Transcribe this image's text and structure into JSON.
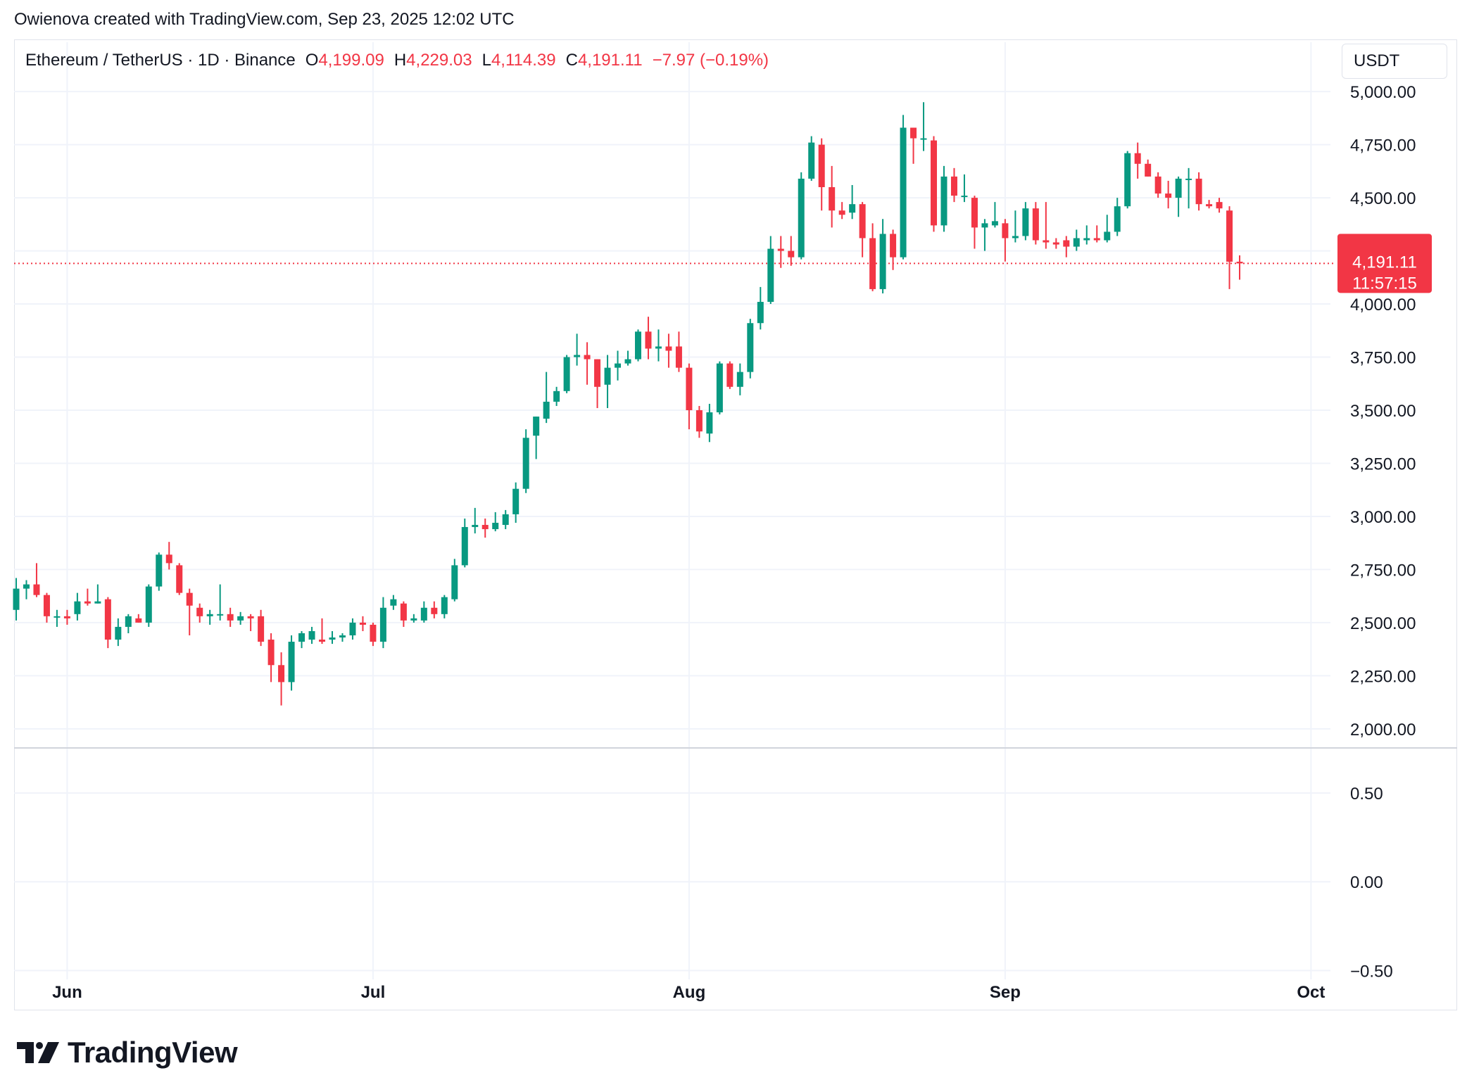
{
  "attribution": "Owienova created with TradingView.com, Sep 23, 2025 12:02 UTC",
  "legend": {
    "symbol": "Ethereum / TetherUS · 1D · Binance",
    "o_label": "O",
    "o_value": "4,199.09",
    "h_label": "H",
    "h_value": "4,229.03",
    "l_label": "L",
    "l_value": "4,114.39",
    "c_label": "C",
    "c_value": "4,191.11",
    "change": "−7.97 (−0.19%)"
  },
  "currency_button": "USDT",
  "last_price": {
    "price": "4,191.11",
    "countdown": "11:57:15"
  },
  "logo_text": "TradingView",
  "colors": {
    "up": "#089981",
    "down": "#f23645",
    "grid": "#f0f3fa",
    "text": "#131722"
  },
  "chart_data": {
    "type": "candlestick",
    "title": "Ethereum / TetherUS · 1D · Binance",
    "price_axis": {
      "ylim": [
        1920,
        5080
      ],
      "ticks": [
        2000,
        2250,
        2500,
        2750,
        3000,
        3250,
        3500,
        3750,
        4000,
        4250,
        4500,
        4750,
        5000
      ],
      "tick_labels": [
        "2,000.00",
        "2,250.00",
        "2,500.00",
        "2,750.00",
        "3,000.00",
        "3,250.00",
        "3,500.00",
        "3,750.00",
        "4,000.00",
        "4,250.00",
        "4,500.00",
        "4,750.00",
        "5,000.00"
      ],
      "current_price": 4191.11
    },
    "indicator_axis": {
      "ylim": [
        -0.55,
        0.75
      ],
      "ticks": [
        0.5,
        0.0,
        -0.5
      ],
      "tick_labels": [
        "0.50",
        "0.00",
        "−0.50"
      ]
    },
    "time_axis": {
      "labels": [
        "Jun",
        "Jul",
        "Aug",
        "Sep",
        "Oct"
      ],
      "label_dates": [
        "2025-06-01",
        "2025-07-01",
        "2025-08-01",
        "2025-09-01",
        "2025-10-01"
      ]
    },
    "candles": [
      {
        "date": "2025-05-27",
        "o": 2560,
        "h": 2710,
        "l": 2510,
        "c": 2660
      },
      {
        "date": "2025-05-28",
        "o": 2660,
        "h": 2700,
        "l": 2610,
        "c": 2680
      },
      {
        "date": "2025-05-29",
        "o": 2680,
        "h": 2780,
        "l": 2620,
        "c": 2630
      },
      {
        "date": "2025-05-30",
        "o": 2630,
        "h": 2640,
        "l": 2500,
        "c": 2530
      },
      {
        "date": "2025-05-31",
        "o": 2530,
        "h": 2560,
        "l": 2480,
        "c": 2530
      },
      {
        "date": "2025-06-01",
        "o": 2530,
        "h": 2560,
        "l": 2490,
        "c": 2520
      },
      {
        "date": "2025-06-02",
        "o": 2540,
        "h": 2640,
        "l": 2510,
        "c": 2600
      },
      {
        "date": "2025-06-03",
        "o": 2600,
        "h": 2660,
        "l": 2580,
        "c": 2590
      },
      {
        "date": "2025-06-04",
        "o": 2590,
        "h": 2680,
        "l": 2590,
        "c": 2600
      },
      {
        "date": "2025-06-05",
        "o": 2610,
        "h": 2620,
        "l": 2380,
        "c": 2420
      },
      {
        "date": "2025-06-06",
        "o": 2420,
        "h": 2520,
        "l": 2390,
        "c": 2480
      },
      {
        "date": "2025-06-07",
        "o": 2480,
        "h": 2540,
        "l": 2450,
        "c": 2530
      },
      {
        "date": "2025-06-08",
        "o": 2520,
        "h": 2540,
        "l": 2500,
        "c": 2500
      },
      {
        "date": "2025-06-09",
        "o": 2500,
        "h": 2680,
        "l": 2480,
        "c": 2670
      },
      {
        "date": "2025-06-10",
        "o": 2670,
        "h": 2830,
        "l": 2650,
        "c": 2820
      },
      {
        "date": "2025-06-11",
        "o": 2820,
        "h": 2880,
        "l": 2750,
        "c": 2780
      },
      {
        "date": "2025-06-12",
        "o": 2770,
        "h": 2780,
        "l": 2630,
        "c": 2640
      },
      {
        "date": "2025-06-13",
        "o": 2640,
        "h": 2660,
        "l": 2440,
        "c": 2580
      },
      {
        "date": "2025-06-14",
        "o": 2570,
        "h": 2590,
        "l": 2500,
        "c": 2530
      },
      {
        "date": "2025-06-15",
        "o": 2530,
        "h": 2560,
        "l": 2490,
        "c": 2540
      },
      {
        "date": "2025-06-16",
        "o": 2540,
        "h": 2680,
        "l": 2510,
        "c": 2540
      },
      {
        "date": "2025-06-17",
        "o": 2540,
        "h": 2570,
        "l": 2480,
        "c": 2510
      },
      {
        "date": "2025-06-18",
        "o": 2510,
        "h": 2550,
        "l": 2490,
        "c": 2530
      },
      {
        "date": "2025-06-19",
        "o": 2530,
        "h": 2540,
        "l": 2460,
        "c": 2520
      },
      {
        "date": "2025-06-20",
        "o": 2530,
        "h": 2560,
        "l": 2390,
        "c": 2410
      },
      {
        "date": "2025-06-21",
        "o": 2420,
        "h": 2450,
        "l": 2220,
        "c": 2300
      },
      {
        "date": "2025-06-22",
        "o": 2300,
        "h": 2360,
        "l": 2110,
        "c": 2220
      },
      {
        "date": "2025-06-23",
        "o": 2220,
        "h": 2440,
        "l": 2180,
        "c": 2410
      },
      {
        "date": "2025-06-24",
        "o": 2410,
        "h": 2460,
        "l": 2380,
        "c": 2450
      },
      {
        "date": "2025-06-25",
        "o": 2420,
        "h": 2480,
        "l": 2400,
        "c": 2460
      },
      {
        "date": "2025-06-26",
        "o": 2420,
        "h": 2520,
        "l": 2400,
        "c": 2410
      },
      {
        "date": "2025-06-27",
        "o": 2420,
        "h": 2460,
        "l": 2400,
        "c": 2430
      },
      {
        "date": "2025-06-28",
        "o": 2430,
        "h": 2450,
        "l": 2410,
        "c": 2440
      },
      {
        "date": "2025-06-29",
        "o": 2440,
        "h": 2520,
        "l": 2420,
        "c": 2500
      },
      {
        "date": "2025-06-30",
        "o": 2500,
        "h": 2530,
        "l": 2460,
        "c": 2490
      },
      {
        "date": "2025-07-01",
        "o": 2490,
        "h": 2500,
        "l": 2390,
        "c": 2410
      },
      {
        "date": "2025-07-02",
        "o": 2410,
        "h": 2620,
        "l": 2380,
        "c": 2570
      },
      {
        "date": "2025-07-03",
        "o": 2580,
        "h": 2630,
        "l": 2560,
        "c": 2610
      },
      {
        "date": "2025-07-04",
        "o": 2590,
        "h": 2600,
        "l": 2480,
        "c": 2510
      },
      {
        "date": "2025-07-05",
        "o": 2510,
        "h": 2540,
        "l": 2500,
        "c": 2520
      },
      {
        "date": "2025-07-06",
        "o": 2510,
        "h": 2600,
        "l": 2500,
        "c": 2570
      },
      {
        "date": "2025-07-07",
        "o": 2570,
        "h": 2600,
        "l": 2520,
        "c": 2540
      },
      {
        "date": "2025-07-08",
        "o": 2540,
        "h": 2630,
        "l": 2520,
        "c": 2620
      },
      {
        "date": "2025-07-09",
        "o": 2610,
        "h": 2800,
        "l": 2600,
        "c": 2770
      },
      {
        "date": "2025-07-10",
        "o": 2770,
        "h": 2990,
        "l": 2760,
        "c": 2950
      },
      {
        "date": "2025-07-11",
        "o": 2950,
        "h": 3040,
        "l": 2920,
        "c": 2960
      },
      {
        "date": "2025-07-12",
        "o": 2960,
        "h": 2990,
        "l": 2900,
        "c": 2940
      },
      {
        "date": "2025-07-13",
        "o": 2940,
        "h": 3020,
        "l": 2930,
        "c": 2970
      },
      {
        "date": "2025-07-14",
        "o": 2960,
        "h": 3030,
        "l": 2940,
        "c": 3010
      },
      {
        "date": "2025-07-15",
        "o": 3010,
        "h": 3160,
        "l": 2970,
        "c": 3130
      },
      {
        "date": "2025-07-16",
        "o": 3130,
        "h": 3410,
        "l": 3110,
        "c": 3370
      },
      {
        "date": "2025-07-17",
        "o": 3380,
        "h": 3470,
        "l": 3270,
        "c": 3470
      },
      {
        "date": "2025-07-18",
        "o": 3460,
        "h": 3680,
        "l": 3440,
        "c": 3540
      },
      {
        "date": "2025-07-19",
        "o": 3540,
        "h": 3610,
        "l": 3520,
        "c": 3590
      },
      {
        "date": "2025-07-20",
        "o": 3590,
        "h": 3760,
        "l": 3580,
        "c": 3750
      },
      {
        "date": "2025-07-21",
        "o": 3750,
        "h": 3860,
        "l": 3710,
        "c": 3760
      },
      {
        "date": "2025-07-22",
        "o": 3760,
        "h": 3820,
        "l": 3620,
        "c": 3740
      },
      {
        "date": "2025-07-23",
        "o": 3740,
        "h": 3740,
        "l": 3510,
        "c": 3610
      },
      {
        "date": "2025-07-24",
        "o": 3620,
        "h": 3760,
        "l": 3510,
        "c": 3700
      },
      {
        "date": "2025-07-25",
        "o": 3700,
        "h": 3780,
        "l": 3640,
        "c": 3720
      },
      {
        "date": "2025-07-26",
        "o": 3720,
        "h": 3780,
        "l": 3710,
        "c": 3740
      },
      {
        "date": "2025-07-27",
        "o": 3740,
        "h": 3880,
        "l": 3730,
        "c": 3870
      },
      {
        "date": "2025-07-28",
        "o": 3870,
        "h": 3940,
        "l": 3740,
        "c": 3790
      },
      {
        "date": "2025-07-29",
        "o": 3790,
        "h": 3880,
        "l": 3730,
        "c": 3800
      },
      {
        "date": "2025-07-30",
        "o": 3800,
        "h": 3860,
        "l": 3700,
        "c": 3780
      },
      {
        "date": "2025-07-31",
        "o": 3800,
        "h": 3870,
        "l": 3680,
        "c": 3700
      },
      {
        "date": "2025-08-01",
        "o": 3700,
        "h": 3720,
        "l": 3410,
        "c": 3500
      },
      {
        "date": "2025-08-02",
        "o": 3500,
        "h": 3520,
        "l": 3370,
        "c": 3400
      },
      {
        "date": "2025-08-03",
        "o": 3390,
        "h": 3530,
        "l": 3350,
        "c": 3490
      },
      {
        "date": "2025-08-04",
        "o": 3490,
        "h": 3730,
        "l": 3480,
        "c": 3720
      },
      {
        "date": "2025-08-05",
        "o": 3720,
        "h": 3730,
        "l": 3600,
        "c": 3610
      },
      {
        "date": "2025-08-06",
        "o": 3610,
        "h": 3720,
        "l": 3570,
        "c": 3680
      },
      {
        "date": "2025-08-07",
        "o": 3680,
        "h": 3930,
        "l": 3650,
        "c": 3910
      },
      {
        "date": "2025-08-08",
        "o": 3910,
        "h": 4080,
        "l": 3880,
        "c": 4010
      },
      {
        "date": "2025-08-09",
        "o": 4010,
        "h": 4320,
        "l": 4000,
        "c": 4260
      },
      {
        "date": "2025-08-10",
        "o": 4260,
        "h": 4320,
        "l": 4170,
        "c": 4250
      },
      {
        "date": "2025-08-11",
        "o": 4250,
        "h": 4320,
        "l": 4180,
        "c": 4220
      },
      {
        "date": "2025-08-12",
        "o": 4220,
        "h": 4620,
        "l": 4210,
        "c": 4590
      },
      {
        "date": "2025-08-13",
        "o": 4590,
        "h": 4790,
        "l": 4580,
        "c": 4760
      },
      {
        "date": "2025-08-14",
        "o": 4750,
        "h": 4780,
        "l": 4440,
        "c": 4550
      },
      {
        "date": "2025-08-15",
        "o": 4550,
        "h": 4650,
        "l": 4360,
        "c": 4440
      },
      {
        "date": "2025-08-16",
        "o": 4440,
        "h": 4480,
        "l": 4400,
        "c": 4420
      },
      {
        "date": "2025-08-17",
        "o": 4430,
        "h": 4560,
        "l": 4400,
        "c": 4470
      },
      {
        "date": "2025-08-18",
        "o": 4470,
        "h": 4480,
        "l": 4220,
        "c": 4310
      },
      {
        "date": "2025-08-19",
        "o": 4310,
        "h": 4380,
        "l": 4060,
        "c": 4070
      },
      {
        "date": "2025-08-20",
        "o": 4070,
        "h": 4400,
        "l": 4050,
        "c": 4330
      },
      {
        "date": "2025-08-21",
        "o": 4330,
        "h": 4350,
        "l": 4160,
        "c": 4220
      },
      {
        "date": "2025-08-22",
        "o": 4220,
        "h": 4890,
        "l": 4210,
        "c": 4830
      },
      {
        "date": "2025-08-23",
        "o": 4830,
        "h": 4830,
        "l": 4660,
        "c": 4780
      },
      {
        "date": "2025-08-24",
        "o": 4780,
        "h": 4950,
        "l": 4720,
        "c": 4780
      },
      {
        "date": "2025-08-25",
        "o": 4770,
        "h": 4790,
        "l": 4340,
        "c": 4370
      },
      {
        "date": "2025-08-26",
        "o": 4370,
        "h": 4650,
        "l": 4340,
        "c": 4600
      },
      {
        "date": "2025-08-27",
        "o": 4600,
        "h": 4640,
        "l": 4480,
        "c": 4510
      },
      {
        "date": "2025-08-28",
        "o": 4510,
        "h": 4610,
        "l": 4480,
        "c": 4510
      },
      {
        "date": "2025-08-29",
        "o": 4500,
        "h": 4510,
        "l": 4260,
        "c": 4360
      },
      {
        "date": "2025-08-30",
        "o": 4360,
        "h": 4400,
        "l": 4250,
        "c": 4380
      },
      {
        "date": "2025-08-31",
        "o": 4370,
        "h": 4480,
        "l": 4360,
        "c": 4390
      },
      {
        "date": "2025-09-01",
        "o": 4380,
        "h": 4400,
        "l": 4200,
        "c": 4310
      },
      {
        "date": "2025-09-02",
        "o": 4310,
        "h": 4440,
        "l": 4290,
        "c": 4320
      },
      {
        "date": "2025-09-03",
        "o": 4320,
        "h": 4480,
        "l": 4300,
        "c": 4450
      },
      {
        "date": "2025-09-04",
        "o": 4450,
        "h": 4480,
        "l": 4280,
        "c": 4300
      },
      {
        "date": "2025-09-05",
        "o": 4300,
        "h": 4480,
        "l": 4260,
        "c": 4290
      },
      {
        "date": "2025-09-06",
        "o": 4290,
        "h": 4310,
        "l": 4260,
        "c": 4280
      },
      {
        "date": "2025-09-07",
        "o": 4300,
        "h": 4320,
        "l": 4220,
        "c": 4270
      },
      {
        "date": "2025-09-08",
        "o": 4270,
        "h": 4350,
        "l": 4250,
        "c": 4310
      },
      {
        "date": "2025-09-09",
        "o": 4300,
        "h": 4370,
        "l": 4280,
        "c": 4310
      },
      {
        "date": "2025-09-10",
        "o": 4310,
        "h": 4370,
        "l": 4290,
        "c": 4300
      },
      {
        "date": "2025-09-11",
        "o": 4300,
        "h": 4420,
        "l": 4290,
        "c": 4340
      },
      {
        "date": "2025-09-12",
        "o": 4340,
        "h": 4500,
        "l": 4320,
        "c": 4460
      },
      {
        "date": "2025-09-13",
        "o": 4460,
        "h": 4720,
        "l": 4450,
        "c": 4710
      },
      {
        "date": "2025-09-14",
        "o": 4710,
        "h": 4760,
        "l": 4590,
        "c": 4660
      },
      {
        "date": "2025-09-15",
        "o": 4660,
        "h": 4680,
        "l": 4600,
        "c": 4600
      },
      {
        "date": "2025-09-16",
        "o": 4600,
        "h": 4620,
        "l": 4500,
        "c": 4520
      },
      {
        "date": "2025-09-17",
        "o": 4520,
        "h": 4580,
        "l": 4450,
        "c": 4500
      },
      {
        "date": "2025-09-18",
        "o": 4500,
        "h": 4600,
        "l": 4410,
        "c": 4590
      },
      {
        "date": "2025-09-19",
        "o": 4590,
        "h": 4640,
        "l": 4450,
        "c": 4590
      },
      {
        "date": "2025-09-20",
        "o": 4590,
        "h": 4620,
        "l": 4440,
        "c": 4470
      },
      {
        "date": "2025-09-21",
        "o": 4470,
        "h": 4490,
        "l": 4450,
        "c": 4460
      },
      {
        "date": "2025-09-22",
        "o": 4480,
        "h": 4500,
        "l": 4430,
        "c": 4450
      },
      {
        "date": "2025-09-23",
        "o": 4440,
        "h": 4460,
        "l": 4070,
        "c": 4199.09
      },
      {
        "date": "2025-09-24",
        "o": 4199.09,
        "h": 4229.03,
        "l": 4114.39,
        "c": 4191.11
      }
    ]
  }
}
